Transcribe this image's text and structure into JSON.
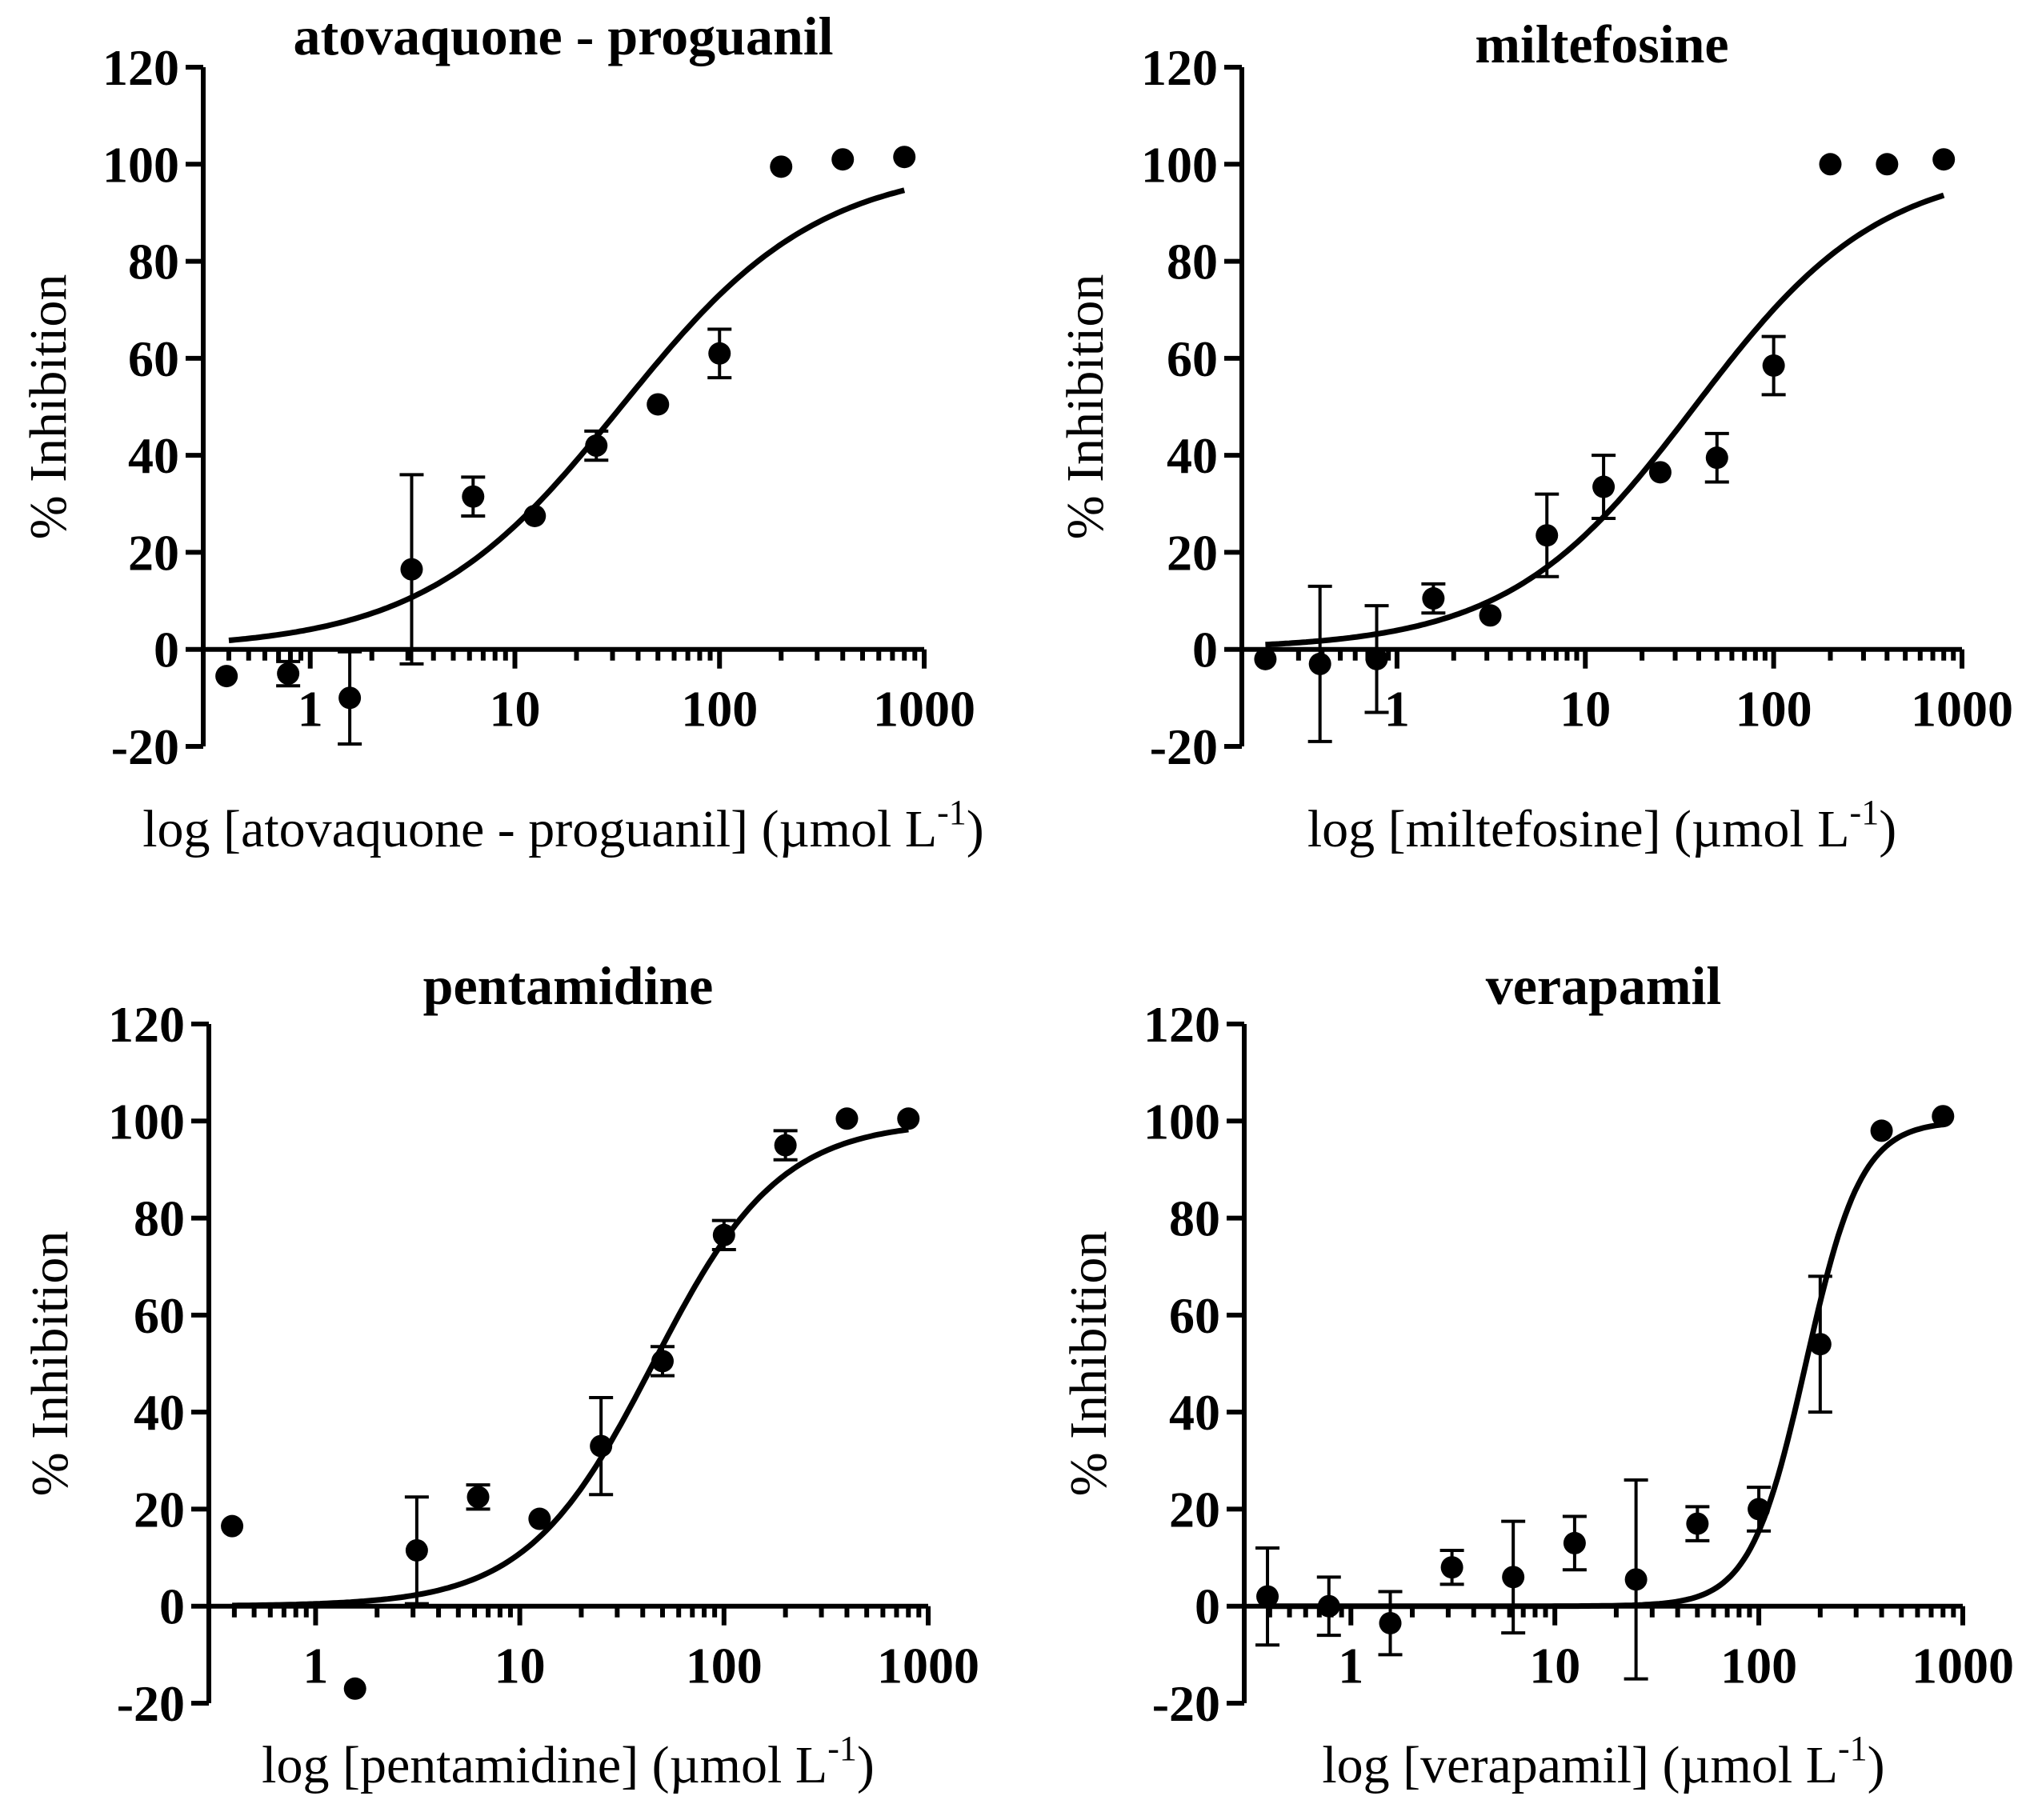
{
  "chart_data": [
    {
      "type": "scatter",
      "title": "atovaquone - proguanil",
      "xlabel": "log [atovaquone - proguanil] (µmol L",
      "xlabel_sup": "-1",
      "xlabel_end": ")",
      "ylabel": "% Inhibition",
      "x_scale": "log",
      "xlim": [
        0.3,
        1000
      ],
      "ylim": [
        -20,
        120
      ],
      "yticks": [
        "120",
        "100",
        "80",
        "60",
        "40",
        "20",
        "0",
        "-20"
      ],
      "xticks": [
        "1",
        "10",
        "100",
        "1000"
      ],
      "points": [
        {
          "x": 0.39,
          "y": -5.5
        },
        {
          "x": 0.78,
          "y": -5,
          "err": 2.5
        },
        {
          "x": 1.56,
          "y": -10,
          "err": 9.5
        },
        {
          "x": 3.13,
          "y": 16.5,
          "err": 19.5
        },
        {
          "x": 6.25,
          "y": 31.5,
          "err": 4
        },
        {
          "x": 12.5,
          "y": 27.5
        },
        {
          "x": 25,
          "y": 42,
          "err": 3
        },
        {
          "x": 50,
          "y": 50.5
        },
        {
          "x": 100,
          "y": 61,
          "err": 5
        },
        {
          "x": 200,
          "y": 99.5
        },
        {
          "x": 400,
          "y": 101
        },
        {
          "x": 800,
          "y": 101.5
        }
      ],
      "fit": {
        "model": "sigmoid",
        "bottom": 0,
        "top": 100,
        "ic50": 33,
        "hill": 0.9,
        "x_start": 0.4,
        "x_end": 800
      }
    },
    {
      "type": "scatter",
      "title": "miltefosine",
      "xlabel": "log [miltefosine] (µmol L",
      "xlabel_sup": "-1",
      "xlabel_end": ")",
      "ylabel": "% Inhibition",
      "x_scale": "log",
      "xlim": [
        0.15,
        1000
      ],
      "ylim": [
        -20,
        120
      ],
      "yticks": [
        "120",
        "100",
        "80",
        "60",
        "40",
        "20",
        "0",
        "-20"
      ],
      "xticks": [
        "1",
        "10",
        "100",
        "1000"
      ],
      "points": [
        {
          "x": 0.2,
          "y": -2
        },
        {
          "x": 0.39,
          "y": -3,
          "err": 16
        },
        {
          "x": 0.78,
          "y": -2,
          "err": 11
        },
        {
          "x": 1.56,
          "y": 10.5,
          "err": 3
        },
        {
          "x": 3.13,
          "y": 7
        },
        {
          "x": 6.25,
          "y": 23.5,
          "err": 8.5
        },
        {
          "x": 12.5,
          "y": 33.5,
          "err": 6.5
        },
        {
          "x": 25,
          "y": 36.5
        },
        {
          "x": 50,
          "y": 39.5,
          "err": 5
        },
        {
          "x": 100,
          "y": 58.5,
          "err": 6
        },
        {
          "x": 200,
          "y": 100
        },
        {
          "x": 400,
          "y": 100
        },
        {
          "x": 800,
          "y": 101
        }
      ],
      "fit": {
        "model": "sigmoid",
        "bottom": 0,
        "top": 100,
        "ic50": 38,
        "hill": 0.88,
        "x_start": 0.2,
        "x_end": 800
      }
    },
    {
      "type": "scatter",
      "title": "pentamidine",
      "xlabel": "log [pentamidine] (µmol L",
      "xlabel_sup": "-1",
      "xlabel_end": ")",
      "ylabel": "% Inhibition",
      "x_scale": "log",
      "xlim": [
        0.3,
        1000
      ],
      "ylim": [
        -20,
        120
      ],
      "yticks": [
        "120",
        "100",
        "80",
        "60",
        "40",
        "20",
        "0",
        "-20"
      ],
      "xticks": [
        "1",
        "10",
        "100",
        "1000"
      ],
      "points": [
        {
          "x": 0.39,
          "y": 16.5
        },
        {
          "x": 1.56,
          "y": -17
        },
        {
          "x": 3.13,
          "y": 11.5,
          "err": 11
        },
        {
          "x": 6.25,
          "y": 22.5,
          "err": 2.5
        },
        {
          "x": 12.5,
          "y": 18
        },
        {
          "x": 25,
          "y": 33,
          "err": 10
        },
        {
          "x": 50,
          "y": 50.5,
          "err": 3
        },
        {
          "x": 100,
          "y": 76.5,
          "err": 3
        },
        {
          "x": 200,
          "y": 95,
          "err": 3
        },
        {
          "x": 400,
          "y": 100.5
        },
        {
          "x": 800,
          "y": 100.5
        }
      ],
      "fit": {
        "model": "sigmoid",
        "bottom": 0,
        "top": 100,
        "ic50": 45,
        "hill": 1.4,
        "x_start": 0.39,
        "x_end": 800
      }
    },
    {
      "type": "scatter",
      "title": "verapamil",
      "xlabel": "log [verapamil] (µmol L",
      "xlabel_sup": "-1",
      "xlabel_end": ")",
      "ylabel": "% Inhibition",
      "x_scale": "log",
      "xlim": [
        0.3,
        1000
      ],
      "ylim": [
        -20,
        120
      ],
      "yticks": [
        "120",
        "100",
        "80",
        "60",
        "40",
        "20",
        "0",
        "-20"
      ],
      "xticks": [
        "1",
        "10",
        "100",
        "1000"
      ],
      "points": [
        {
          "x": 0.39,
          "y": 2,
          "err": 10
        },
        {
          "x": 0.78,
          "y": 0,
          "err": 6
        },
        {
          "x": 1.56,
          "y": -3.5,
          "err": 6.5
        },
        {
          "x": 3.13,
          "y": 8,
          "err": 3.5
        },
        {
          "x": 6.25,
          "y": 6,
          "err": 11.5
        },
        {
          "x": 12.5,
          "y": 13,
          "err": 5.5
        },
        {
          "x": 25,
          "y": 5.5,
          "err": 20.5
        },
        {
          "x": 50,
          "y": 17,
          "err": 3.5
        },
        {
          "x": 100,
          "y": 20,
          "err": 4.5
        },
        {
          "x": 200,
          "y": 54,
          "err": 14
        },
        {
          "x": 400,
          "y": 98
        },
        {
          "x": 800,
          "y": 101
        }
      ],
      "fit": {
        "model": "sigmoid",
        "bottom": 0,
        "top": 100,
        "ic50": 170,
        "hill": 3.2,
        "x_start": 0.39,
        "x_end": 800
      }
    }
  ]
}
